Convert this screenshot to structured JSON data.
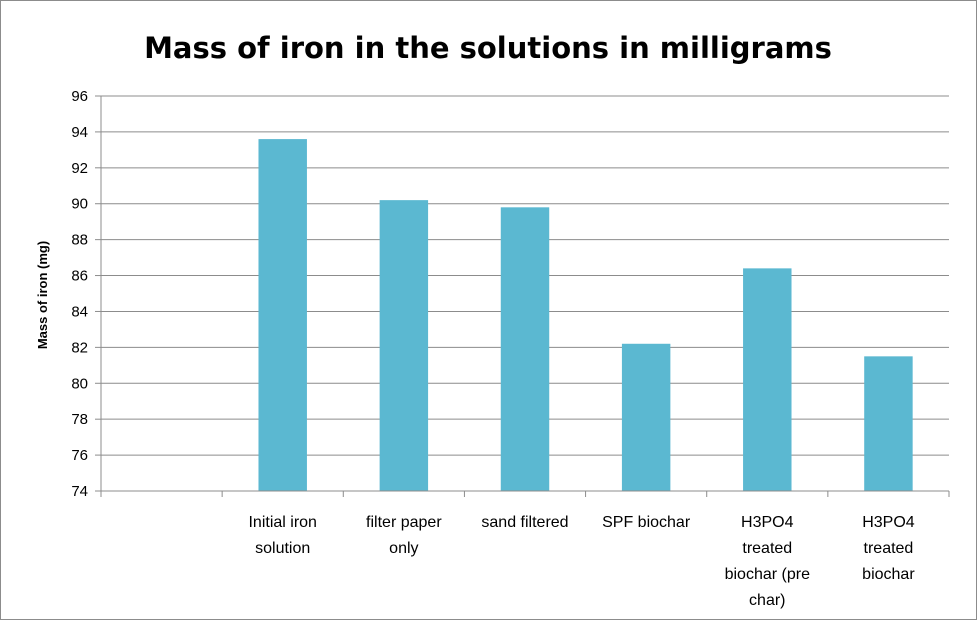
{
  "chart_data": {
    "type": "bar",
    "title": "Mass of iron in the solutions in milligrams",
    "xlabel": "",
    "ylabel": "Mass of iron (mg)",
    "ylim": [
      74,
      96
    ],
    "yticks": [
      74,
      76,
      78,
      80,
      82,
      84,
      86,
      88,
      90,
      92,
      94,
      96
    ],
    "grid": true,
    "legend": "none",
    "bar_color": "#5bb8d1",
    "categories": [
      "",
      "Initial iron solution",
      "filter paper only",
      "sand filtered",
      "SPF  biochar",
      "H3PO4 treated biochar (pre char)",
      "H3PO4 treated biochar"
    ],
    "category_lines": [
      [],
      [
        "Initial iron",
        "solution"
      ],
      [
        "filter paper",
        "only"
      ],
      [
        "sand filtered"
      ],
      [
        "SPF  biochar"
      ],
      [
        "H3PO4",
        "treated",
        "biochar (pre",
        "char)"
      ],
      [
        "H3PO4",
        "treated",
        "biochar"
      ]
    ],
    "values": [
      null,
      93.6,
      90.2,
      89.8,
      82.2,
      86.4,
      81.5
    ]
  }
}
